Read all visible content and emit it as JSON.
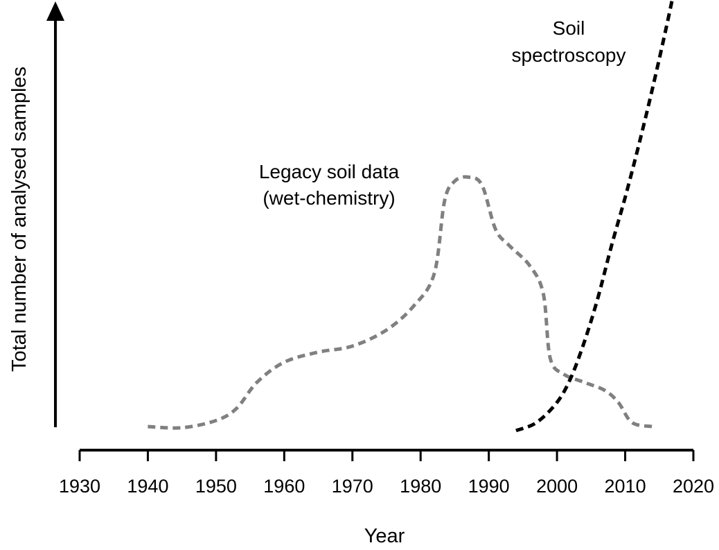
{
  "chart_data": {
    "type": "line",
    "title": "",
    "xlabel": "Year",
    "ylabel": "Total number of analysed samples",
    "xlim": [
      1930,
      2020
    ],
    "ylim": [
      0,
      100
    ],
    "x_ticks": [
      "1930",
      "1940",
      "1950",
      "1960",
      "1970",
      "1980",
      "1990",
      "2000",
      "2010",
      "2020"
    ],
    "y_ticks": [],
    "grid": false,
    "legend": "none",
    "series": [
      {
        "label_lines": [
          "Legacy soil data",
          "(wet-chemistry)"
        ],
        "color": "#808080",
        "style": "dashed",
        "x": [
          1940,
          1945,
          1950,
          1953,
          1956,
          1960,
          1965,
          1970,
          1975,
          1979,
          1982,
          1983.5,
          1985,
          1987,
          1989,
          1991,
          1993,
          1996,
          1998,
          1999,
          2001,
          2004,
          2007,
          2009,
          2011,
          2014
        ],
        "y": [
          0,
          -0.3,
          1.5,
          4.5,
          11,
          16,
          18.5,
          20,
          24,
          30,
          38,
          56,
          61,
          62,
          60,
          49,
          45,
          40,
          33,
          17,
          13,
          11,
          9,
          6,
          1,
          0
        ]
      },
      {
        "label_lines": [
          "Soil",
          "spectroscopy"
        ],
        "color": "#000000",
        "style": "dashed",
        "x": [
          1994,
          1997,
          2000,
          2002,
          2004,
          2006,
          2008,
          2010,
          2012,
          2014,
          2016,
          2017.5
        ],
        "y": [
          -1,
          1,
          6,
          12,
          21,
          32,
          45,
          57,
          70,
          84,
          99,
          111
        ]
      }
    ]
  }
}
